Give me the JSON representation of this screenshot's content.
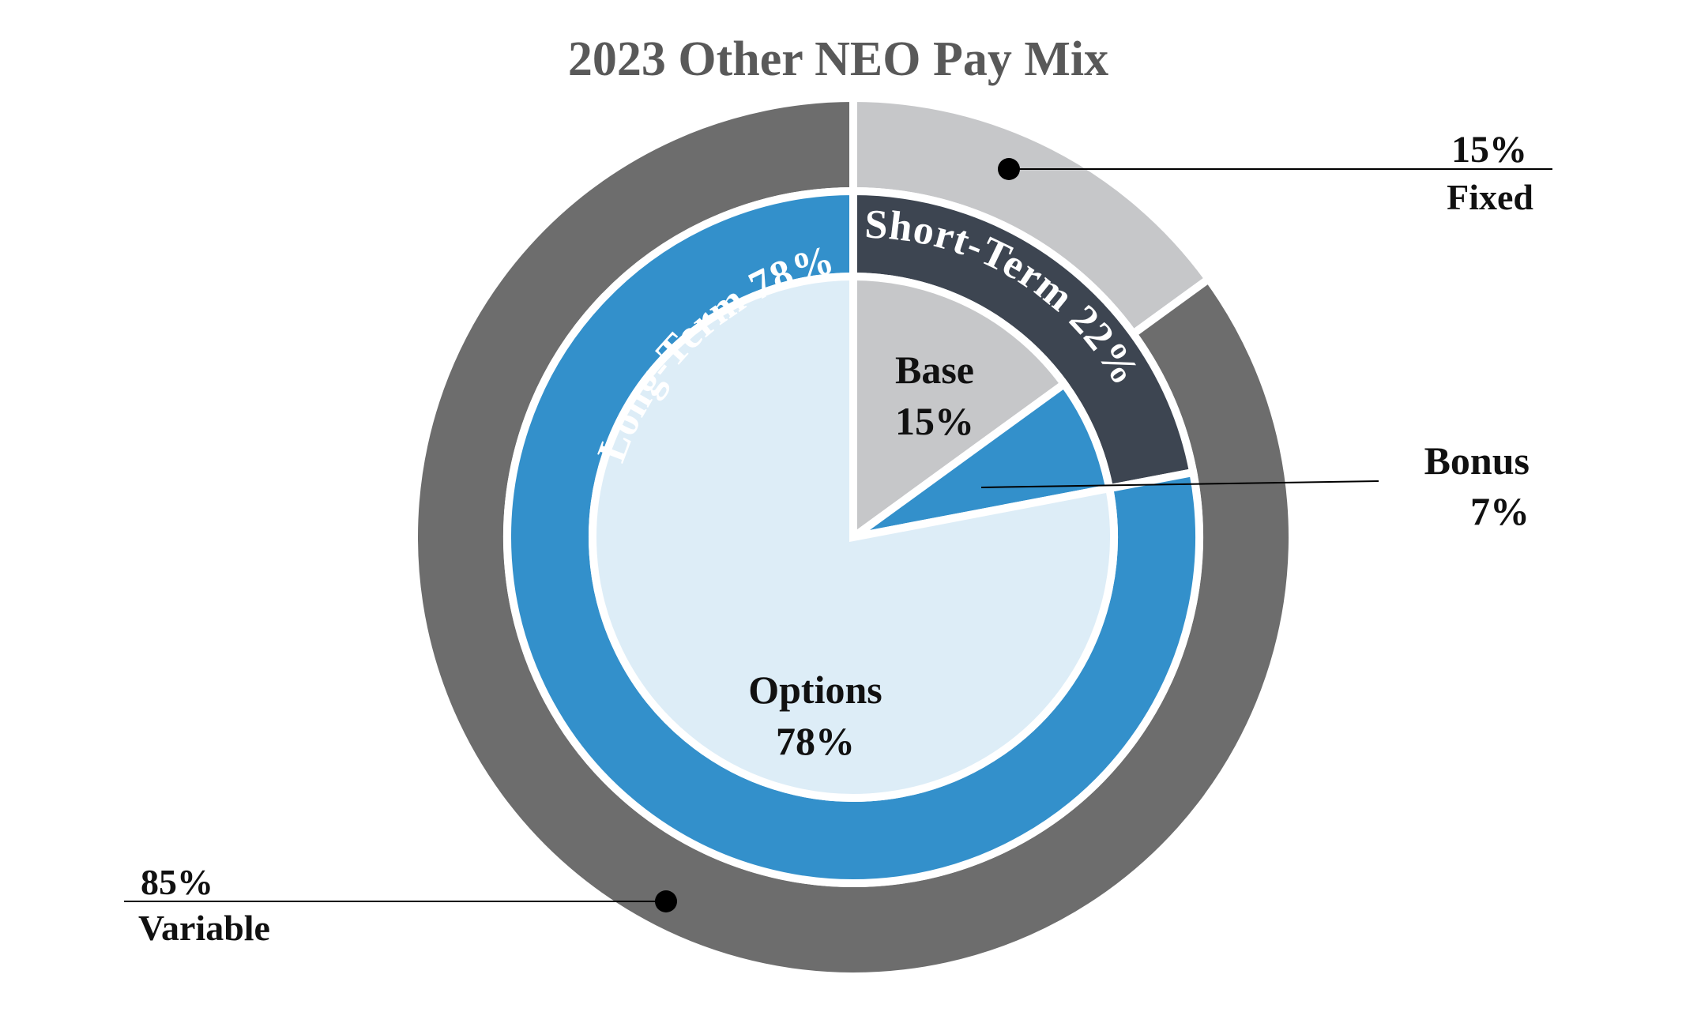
{
  "chart_data": {
    "type": "pie",
    "title": "2023 Other NEO Pay Mix",
    "outer_ring": [
      {
        "label": "Fixed",
        "value": 15,
        "display": "15%",
        "color": "#c6c7c9"
      },
      {
        "label": "Variable",
        "value": 85,
        "display": "85%",
        "color": "#6d6d6d"
      }
    ],
    "middle_ring": [
      {
        "label": "Short-Term 22%",
        "value": 22,
        "color": "#3d4551"
      },
      {
        "label": "Long-Term 78%",
        "value": 78,
        "color": "#3390cb"
      }
    ],
    "inner_pie": [
      {
        "label": "Base",
        "value": 15,
        "display": "15%",
        "color": "#c6c7c9"
      },
      {
        "label": "Bonus",
        "value": 7,
        "display": "7%",
        "color": "#3390cb"
      },
      {
        "label": "Options",
        "value": 78,
        "display": "78%",
        "color": "#ddedf7"
      }
    ],
    "annotation_color": "#000000"
  }
}
